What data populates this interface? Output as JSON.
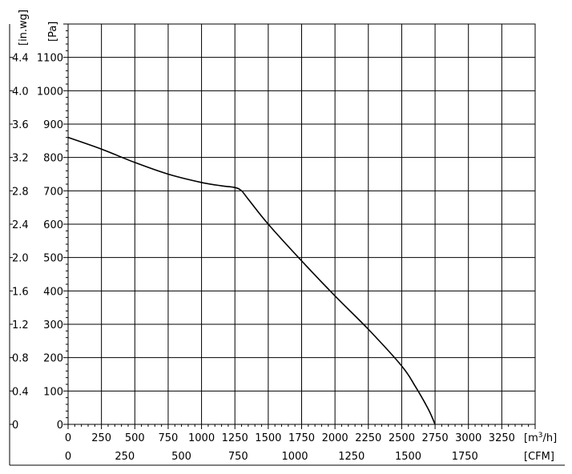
{
  "chart_data": {
    "type": "line",
    "x_axis_primary": {
      "unit_main": "[m",
      "unit_sup": "3",
      "unit_tail": "/h]",
      "range": [
        0,
        3500
      ],
      "ticks": [
        0,
        250,
        500,
        750,
        1000,
        1250,
        1500,
        1750,
        2000,
        2250,
        2500,
        2750,
        3000,
        3250
      ]
    },
    "x_axis_secondary": {
      "unit": "[CFM]",
      "ticks": [
        0,
        250,
        500,
        750,
        1000,
        1250,
        1500,
        1750
      ]
    },
    "y_axis_pa": {
      "unit": "[Pa]",
      "range": [
        0,
        1200
      ],
      "ticks": [
        0,
        100,
        200,
        300,
        400,
        500,
        600,
        700,
        800,
        900,
        1000,
        1100
      ]
    },
    "y_axis_inwg": {
      "unit": "[in.wg]",
      "ticks": [
        "0",
        "0.4",
        "0.8",
        "1.2",
        "1.6",
        "2.0",
        "2.4",
        "2.8",
        "3.2",
        "3.6",
        "4.0",
        "4.4"
      ]
    },
    "series": [
      {
        "x": [
          0,
          250,
          500,
          750,
          1000,
          1150,
          1250,
          1300,
          1350,
          1500,
          1750,
          2000,
          2250,
          2500,
          2600,
          2700,
          2750
        ],
        "y": [
          860,
          825,
          785,
          750,
          725,
          715,
          710,
          700,
          675,
          600,
          490,
          385,
          285,
          175,
          115,
          45,
          0
        ]
      }
    ],
    "grid": true
  }
}
